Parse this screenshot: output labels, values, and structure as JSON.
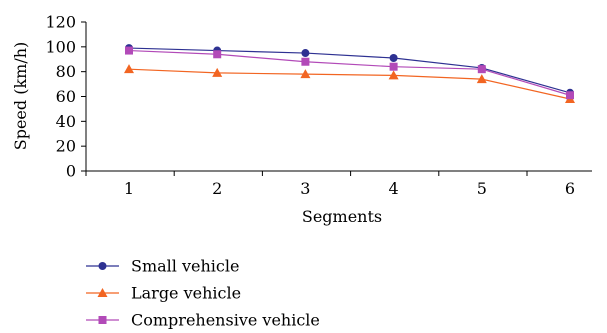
{
  "chart_data": {
    "type": "line",
    "title": "",
    "xlabel": "Segments",
    "ylabel": "Speed (km/h)",
    "categories": [
      "1",
      "2",
      "3",
      "4",
      "5",
      "6"
    ],
    "ylim": [
      0,
      120
    ],
    "yticks": [
      0,
      20,
      40,
      60,
      80,
      100,
      120
    ],
    "grid": false,
    "legend_position": "bottom-left",
    "series": [
      {
        "name": "Small vehicle",
        "values": [
          99,
          97,
          95,
          91,
          83,
          63
        ],
        "color": "#2e3192",
        "marker": "circle"
      },
      {
        "name": "Large vehicle",
        "values": [
          82,
          79,
          78,
          77,
          74,
          58
        ],
        "color": "#f26522",
        "marker": "triangle"
      },
      {
        "name": "Comprehensive vehicle",
        "values": [
          97,
          94,
          88,
          84,
          82,
          61
        ],
        "color": "#b24ab8",
        "marker": "square"
      }
    ]
  }
}
